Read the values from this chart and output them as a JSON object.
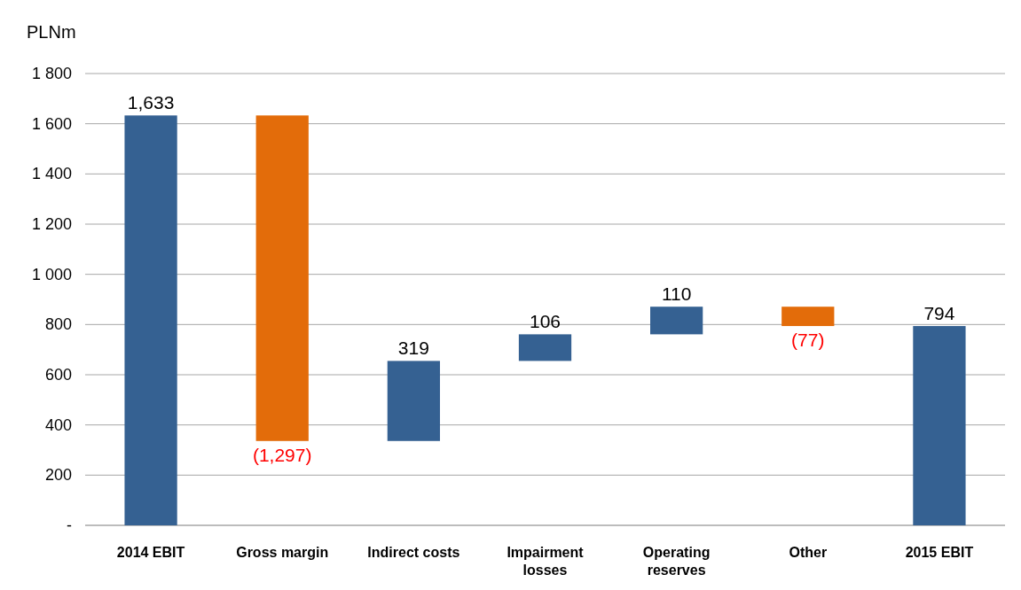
{
  "chart_data": {
    "type": "bar",
    "ylabel": "PLNm",
    "categories": [
      "2014 EBIT",
      "Gross margin",
      "Indirect costs",
      "Impairment losses",
      "Operating reserves",
      "Other",
      "2015 EBIT"
    ],
    "values": [
      1633,
      -1297,
      319,
      106,
      110,
      -77,
      794
    ],
    "base": [
      0,
      1633,
      336,
      655,
      761,
      871,
      0
    ],
    "colors": [
      "#356192",
      "#e36c0a",
      "#356192",
      "#356192",
      "#356192",
      "#e36c0a",
      "#356192"
    ],
    "value_labels": [
      "1,633",
      "(1,297)",
      "319",
      "106",
      "110",
      "(77)",
      "794"
    ],
    "ylim": [
      0,
      1800
    ],
    "yticks": [
      {
        "value": 0,
        "label": "-"
      },
      {
        "value": 200,
        "label": "200"
      },
      {
        "value": 400,
        "label": "400"
      },
      {
        "value": 600,
        "label": "600"
      },
      {
        "value": 800,
        "label": "800"
      },
      {
        "value": 1000,
        "label": "1 000"
      },
      {
        "value": 1200,
        "label": "1 200"
      },
      {
        "value": 1400,
        "label": "1 400"
      },
      {
        "value": 1600,
        "label": "1 600"
      },
      {
        "value": 1800,
        "label": "1 800"
      }
    ],
    "grid": true
  }
}
